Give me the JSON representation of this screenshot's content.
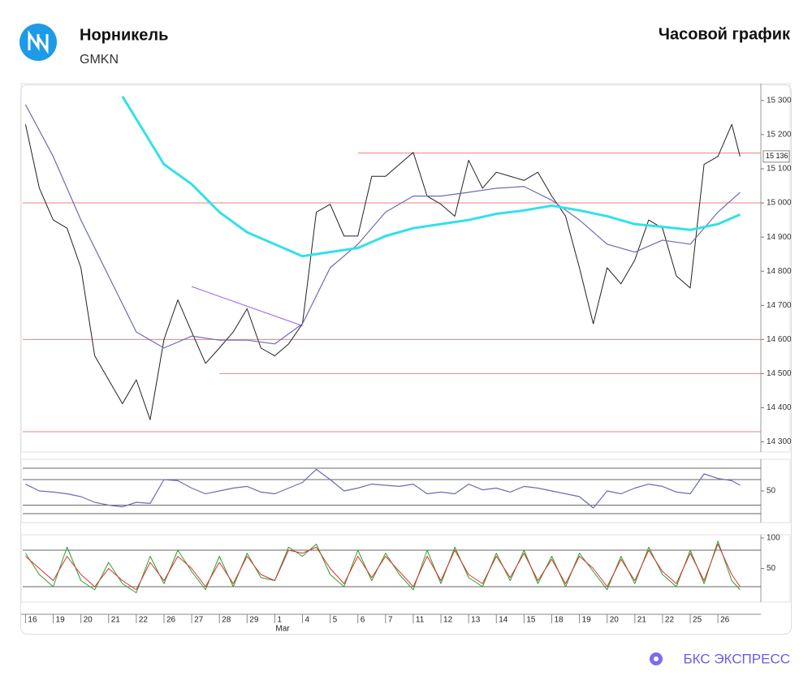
{
  "header": {
    "title": "Норникель",
    "ticker": "GMKN",
    "period": "Часовой график"
  },
  "footer": {
    "brand": "БКС ЭКСПРЕСС"
  },
  "chart_data": [
    {
      "type": "line",
      "xlim": [
        -0.1,
        26.55
      ],
      "ylim": [
        14280,
        15340
      ],
      "yticks": [
        {
          "value": 14300,
          "label": "14 300"
        },
        {
          "value": 14400,
          "label": "14 400"
        },
        {
          "value": 14500,
          "label": "14 500"
        },
        {
          "value": 14600,
          "label": "14 600"
        },
        {
          "value": 14700,
          "label": "14 700"
        },
        {
          "value": 14800,
          "label": "14 800"
        },
        {
          "value": 14900,
          "label": "14 900"
        },
        {
          "value": 15000,
          "label": "15 000"
        },
        {
          "value": 15100,
          "label": "15 100"
        },
        {
          "value": 15200,
          "label": "15 200"
        },
        {
          "value": 15300,
          "label": "15 300"
        }
      ],
      "x": [
        0,
        0.5,
        1,
        1.5,
        2,
        2.5,
        3,
        3.5,
        4,
        4.5,
        5,
        5.5,
        6,
        6.5,
        7,
        7.5,
        8,
        8.5,
        9,
        9.5,
        10,
        10.5,
        11,
        11.5,
        12,
        12.5,
        13,
        13.5,
        14,
        14.5,
        15,
        15.5,
        16,
        16.5,
        17,
        17.5,
        18,
        18.5,
        19,
        19.5,
        20,
        20.5,
        21,
        21.5,
        22,
        22.5,
        23,
        23.5,
        24,
        24.5,
        25,
        25.5,
        25.8
      ],
      "hlines": [
        {
          "value": 15146,
          "from": 12,
          "color": "#f08080"
        },
        {
          "value": 15000,
          "from": -0.1,
          "color": "#f08080"
        },
        {
          "value": 14600,
          "from": -0.1,
          "color": "#f08080"
        },
        {
          "value": 14500,
          "from": 7,
          "color": "#f08080"
        },
        {
          "value": 14330,
          "from": -0.1,
          "color": "#f08080"
        }
      ],
      "trendline": {
        "x": [
          6,
          10
        ],
        "y": [
          14755,
          14640
        ],
        "color": "#9b59f0"
      },
      "last_price": {
        "value": 15136,
        "label": "15 136"
      },
      "series": [
        {
          "color": "#222222",
          "width": 1,
          "values": [
            15230,
            15043,
            14950,
            14926,
            14810,
            14552,
            14482,
            14412,
            14482,
            14365,
            14600,
            14716,
            14622,
            14530,
            14575,
            14622,
            14690,
            14575,
            14552,
            14587,
            14646,
            14973,
            14996,
            14903,
            14903,
            15078,
            15078,
            15113,
            15148,
            15020,
            14996,
            14961,
            15125,
            15043,
            15090,
            15078,
            15066,
            15090,
            15020,
            14961,
            14810,
            14646,
            14810,
            14763,
            14833,
            14950,
            14926,
            14786,
            14751,
            15113,
            15136,
            15230,
            15136
          ]
        },
        {
          "color": "#6b6bb5",
          "width": 1.2,
          "x": [
            0,
            1,
            2,
            3,
            4,
            5,
            6,
            7,
            8,
            9,
            10,
            11,
            12,
            13,
            14,
            15,
            16,
            17,
            18,
            19,
            20,
            21,
            22,
            23,
            24,
            25,
            25.8
          ],
          "values": [
            15288,
            15136,
            14950,
            14786,
            14622,
            14575,
            14610,
            14598,
            14598,
            14587,
            14646,
            14810,
            14879,
            14973,
            15020,
            15020,
            15031,
            15043,
            15048,
            15008,
            14950,
            14879,
            14856,
            14891,
            14879,
            14973,
            15031
          ]
        },
        {
          "color": "#33e0ea",
          "width": 3,
          "x": [
            3.5,
            5,
            6,
            7,
            8,
            9,
            10,
            11,
            12,
            13,
            14,
            15,
            16,
            17,
            18,
            19,
            20,
            21,
            22,
            23,
            24,
            25,
            25.8
          ],
          "values": [
            15312,
            15113,
            15055,
            14973,
            14914,
            14879,
            14844,
            14856,
            14868,
            14903,
            14926,
            14938,
            14950,
            14968,
            14978,
            14992,
            14978,
            14961,
            14938,
            14930,
            14921,
            14938,
            14966
          ]
        }
      ]
    },
    {
      "type": "line",
      "xlim": [
        -0.1,
        26.55
      ],
      "ylim": [
        0,
        100
      ],
      "yticks": [
        50
      ],
      "levels": [
        90,
        70,
        25,
        10
      ],
      "x": [
        0,
        0.5,
        1,
        1.5,
        2,
        2.5,
        3,
        3.5,
        4,
        4.5,
        5,
        5.5,
        6,
        6.5,
        7,
        7.5,
        8,
        8.5,
        9,
        9.5,
        10,
        10.5,
        11,
        11.5,
        12,
        12.5,
        13,
        13.5,
        14,
        14.5,
        15,
        15.5,
        16,
        16.5,
        17,
        17.5,
        18,
        18.5,
        19,
        19.5,
        20,
        20.5,
        21,
        21.5,
        22,
        22.5,
        23,
        23.5,
        24,
        24.5,
        25,
        25.5,
        25.8
      ],
      "series": [
        {
          "color": "#6b6bb5",
          "width": 1.2,
          "values": [
            62,
            50,
            48,
            45,
            40,
            30,
            25,
            22,
            30,
            28,
            70,
            68,
            55,
            45,
            50,
            55,
            58,
            48,
            45,
            55,
            65,
            88,
            70,
            50,
            55,
            62,
            60,
            58,
            62,
            45,
            48,
            45,
            62,
            52,
            55,
            48,
            58,
            55,
            50,
            45,
            40,
            20,
            50,
            45,
            55,
            62,
            58,
            48,
            45,
            80,
            72,
            68,
            60
          ]
        }
      ]
    },
    {
      "type": "line",
      "xlim": [
        -0.1,
        26.55
      ],
      "ylim": [
        0,
        100
      ],
      "yticks": [
        50,
        100
      ],
      "levels": [
        80,
        20
      ],
      "x": [
        0,
        0.5,
        1,
        1.5,
        2,
        2.5,
        3,
        3.5,
        4,
        4.5,
        5,
        5.5,
        6,
        6.5,
        7,
        7.5,
        8,
        8.5,
        9,
        9.5,
        10,
        10.5,
        11,
        11.5,
        12,
        12.5,
        13,
        13.5,
        14,
        14.5,
        15,
        15.5,
        16,
        16.5,
        17,
        17.5,
        18,
        18.5,
        19,
        19.5,
        20,
        20.5,
        21,
        21.5,
        22,
        22.5,
        23,
        23.5,
        24,
        24.5,
        25,
        25.5,
        25.8
      ],
      "xticks": [
        {
          "value": 0,
          "label": "16"
        },
        {
          "value": 1,
          "label": "19"
        },
        {
          "value": 2,
          "label": "20"
        },
        {
          "value": 3,
          "label": "21"
        },
        {
          "value": 4,
          "label": "22"
        },
        {
          "value": 5,
          "label": "26"
        },
        {
          "value": 6,
          "label": "27"
        },
        {
          "value": 7,
          "label": "28"
        },
        {
          "value": 8,
          "label": "29"
        },
        {
          "value": 9,
          "label": "1"
        },
        {
          "value": 10,
          "label": "4"
        },
        {
          "value": 11,
          "label": "5"
        },
        {
          "value": 12,
          "label": "6"
        },
        {
          "value": 13,
          "label": "7"
        },
        {
          "value": 14,
          "label": "11"
        },
        {
          "value": 15,
          "label": "12"
        },
        {
          "value": 16,
          "label": "13"
        },
        {
          "value": 17,
          "label": "14"
        },
        {
          "value": 18,
          "label": "15"
        },
        {
          "value": 19,
          "label": "18"
        },
        {
          "value": 20,
          "label": "19"
        },
        {
          "value": 21,
          "label": "20"
        },
        {
          "value": 22,
          "label": "21"
        },
        {
          "value": 23,
          "label": "22"
        },
        {
          "value": 24,
          "label": "25"
        },
        {
          "value": 25,
          "label": "26"
        }
      ],
      "month_label": {
        "value": 9,
        "label": "Mar"
      },
      "series": [
        {
          "color": "#2aa02a",
          "width": 1,
          "values": [
            75,
            40,
            20,
            85,
            30,
            15,
            60,
            25,
            10,
            70,
            25,
            80,
            45,
            15,
            70,
            20,
            75,
            35,
            30,
            85,
            70,
            90,
            40,
            20,
            80,
            30,
            75,
            40,
            15,
            80,
            25,
            85,
            35,
            20,
            75,
            30,
            80,
            25,
            70,
            20,
            75,
            45,
            15,
            70,
            25,
            85,
            40,
            20,
            80,
            25,
            95,
            30,
            15
          ]
        },
        {
          "color": "#e03030",
          "width": 1,
          "values": [
            70,
            50,
            30,
            70,
            40,
            20,
            50,
            30,
            15,
            60,
            30,
            70,
            50,
            20,
            60,
            25,
            70,
            40,
            30,
            80,
            75,
            85,
            50,
            25,
            70,
            35,
            70,
            45,
            20,
            70,
            30,
            80,
            40,
            25,
            70,
            35,
            75,
            30,
            65,
            25,
            70,
            50,
            20,
            65,
            30,
            80,
            45,
            25,
            75,
            30,
            90,
            40,
            20
          ]
        }
      ]
    }
  ]
}
